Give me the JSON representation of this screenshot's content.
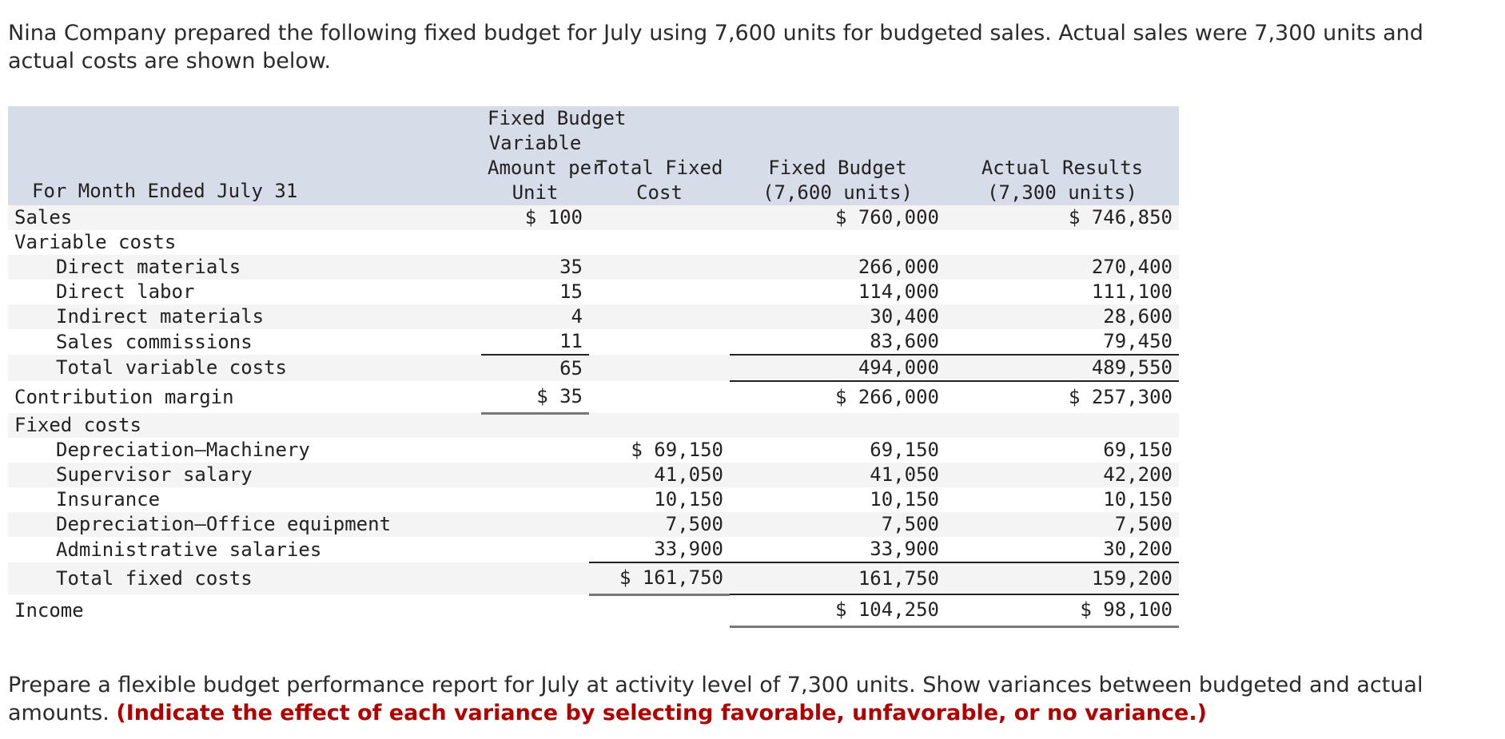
{
  "intro": "Nina Company prepared the following fixed budget for July using 7,600 units for budgeted sales. Actual sales were 7,300 units and actual costs are shown below.",
  "table": {
    "header": {
      "label": "For Month Ended July 31",
      "var_line1": "Fixed Budget",
      "var_line2": "Variable",
      "var_line3": "Amount per",
      "var_line4": "Unit",
      "fixed_line1": "Total Fixed",
      "fixed_line2": "Cost",
      "budget_line1": "Fixed Budget",
      "budget_line2": "(7,600 units)",
      "actual_line1": "Actual Results",
      "actual_line2": "(7,300 units)"
    },
    "rows": [
      {
        "label": "Sales",
        "var": "$ 100",
        "fixed": "",
        "budget": "$ 760,000",
        "actual": "$ 746,850"
      },
      {
        "label": "Variable costs",
        "var": "",
        "fixed": "",
        "budget": "",
        "actual": ""
      },
      {
        "label": "Direct materials",
        "var": "35",
        "fixed": "",
        "budget": "266,000",
        "actual": "270,400"
      },
      {
        "label": "Direct labor",
        "var": "15",
        "fixed": "",
        "budget": "114,000",
        "actual": "111,100"
      },
      {
        "label": "Indirect materials",
        "var": "4",
        "fixed": "",
        "budget": "30,400",
        "actual": "28,600"
      },
      {
        "label": "Sales commissions",
        "var": "11",
        "fixed": "",
        "budget": "83,600",
        "actual": "79,450"
      },
      {
        "label": "Total variable costs",
        "var": "65",
        "fixed": "",
        "budget": "494,000",
        "actual": "489,550"
      },
      {
        "label": "Contribution margin",
        "var": "$ 35",
        "fixed": "",
        "budget": "$ 266,000",
        "actual": "$ 257,300"
      },
      {
        "label": "Fixed costs",
        "var": "",
        "fixed": "",
        "budget": "",
        "actual": ""
      },
      {
        "label": "Depreciation—Machinery",
        "var": "",
        "fixed": "$ 69,150",
        "budget": "69,150",
        "actual": "69,150"
      },
      {
        "label": "Supervisor salary",
        "var": "",
        "fixed": "41,050",
        "budget": "41,050",
        "actual": "42,200"
      },
      {
        "label": "Insurance",
        "var": "",
        "fixed": "10,150",
        "budget": "10,150",
        "actual": "10,150"
      },
      {
        "label": "Depreciation—Office equipment",
        "var": "",
        "fixed": "7,500",
        "budget": "7,500",
        "actual": "7,500"
      },
      {
        "label": "Administrative salaries",
        "var": "",
        "fixed": "33,900",
        "budget": "33,900",
        "actual": "30,200"
      },
      {
        "label": "Total fixed costs",
        "var": "",
        "fixed": "$ 161,750",
        "budget": "161,750",
        "actual": "159,200"
      },
      {
        "label": "Income",
        "var": "",
        "fixed": "",
        "budget": "$ 104,250",
        "actual": "$ 98,100"
      }
    ]
  },
  "instruction": "Prepare a flexible budget performance report for July at activity level of 7,300 units. Show variances between budgeted and actual amounts.",
  "instruction_emphasis": "(Indicate the effect of each variance by selecting favorable, unfavorable, or no variance.)",
  "colors": {
    "header_bg": "#d7dce9",
    "stripe_bg": "#f4f4f4",
    "emphasis": "#b00000"
  }
}
